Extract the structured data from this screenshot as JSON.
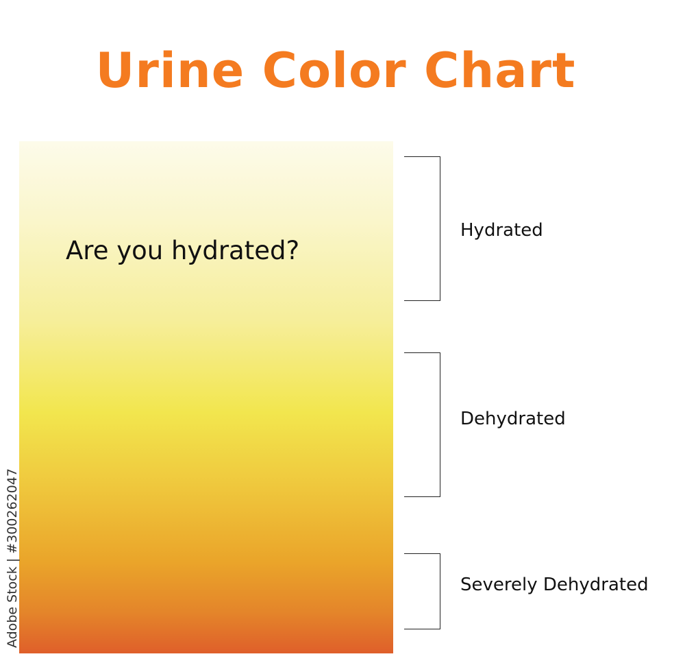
{
  "title": "Urine Color Chart",
  "question": "Are you hydrated?",
  "colors": {
    "title": "#f47b20",
    "gradient_top": "#fdfbea",
    "gradient_middle": "#f2e64e",
    "gradient_bottom": "#df5f2a"
  },
  "levels": [
    {
      "label": "Hydrated"
    },
    {
      "label": "Dehydrated"
    },
    {
      "label": "Severely Dehydrated"
    }
  ],
  "watermark": "Adobe Stock | #300262047"
}
